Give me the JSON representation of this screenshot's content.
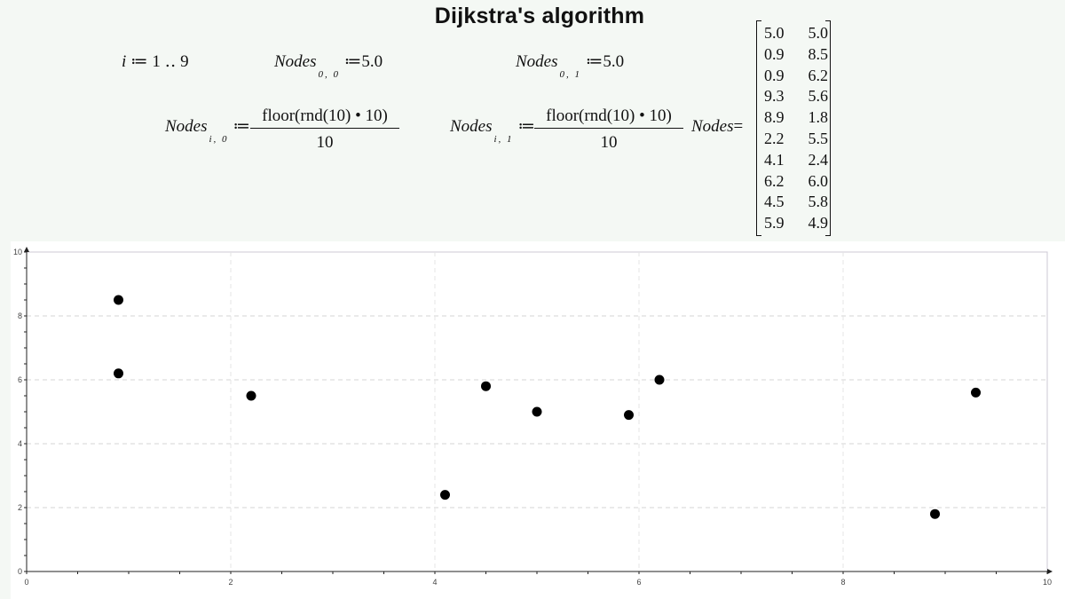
{
  "title": "Dijkstra's algorithm",
  "definitions": {
    "range_var": "i",
    "range_assign": "≔",
    "range_value": "1 ‥ 9",
    "node_name": "Nodes",
    "assign": "≔",
    "sub_00": "0, 0",
    "val_00": "5.0",
    "sub_01": "0, 1",
    "val_01": "5.0",
    "sub_i0": "i, 0",
    "sub_i1": "i, 1",
    "formula_numerator": "floor(rnd(10) • 10)",
    "formula_denominator": "10",
    "result_equals": "="
  },
  "matrix": [
    [
      "5.0",
      "5.0"
    ],
    [
      "0.9",
      "8.5"
    ],
    [
      "0.9",
      "6.2"
    ],
    [
      "9.3",
      "5.6"
    ],
    [
      "8.9",
      "1.8"
    ],
    [
      "2.2",
      "5.5"
    ],
    [
      "4.1",
      "2.4"
    ],
    [
      "6.2",
      "6.0"
    ],
    [
      "4.5",
      "5.8"
    ],
    [
      "5.9",
      "4.9"
    ]
  ],
  "chart_data": {
    "type": "scatter",
    "title": "",
    "xlabel": "",
    "ylabel": "",
    "xlim": [
      0,
      10
    ],
    "ylim": [
      0,
      10
    ],
    "xticks": [
      "0",
      "2",
      "4",
      "6",
      "8",
      "10"
    ],
    "yticks": [
      "0",
      "2",
      "4",
      "6",
      "8",
      "10"
    ],
    "grid": true,
    "marker_color": "#000000",
    "series": [
      {
        "x": [
          5.0,
          0.9,
          0.9,
          9.3,
          8.9,
          2.2,
          4.1,
          6.2,
          4.5,
          5.9
        ],
        "y": [
          5.0,
          8.5,
          6.2,
          5.6,
          1.8,
          5.5,
          2.4,
          6.0,
          5.8,
          4.9
        ]
      }
    ]
  }
}
